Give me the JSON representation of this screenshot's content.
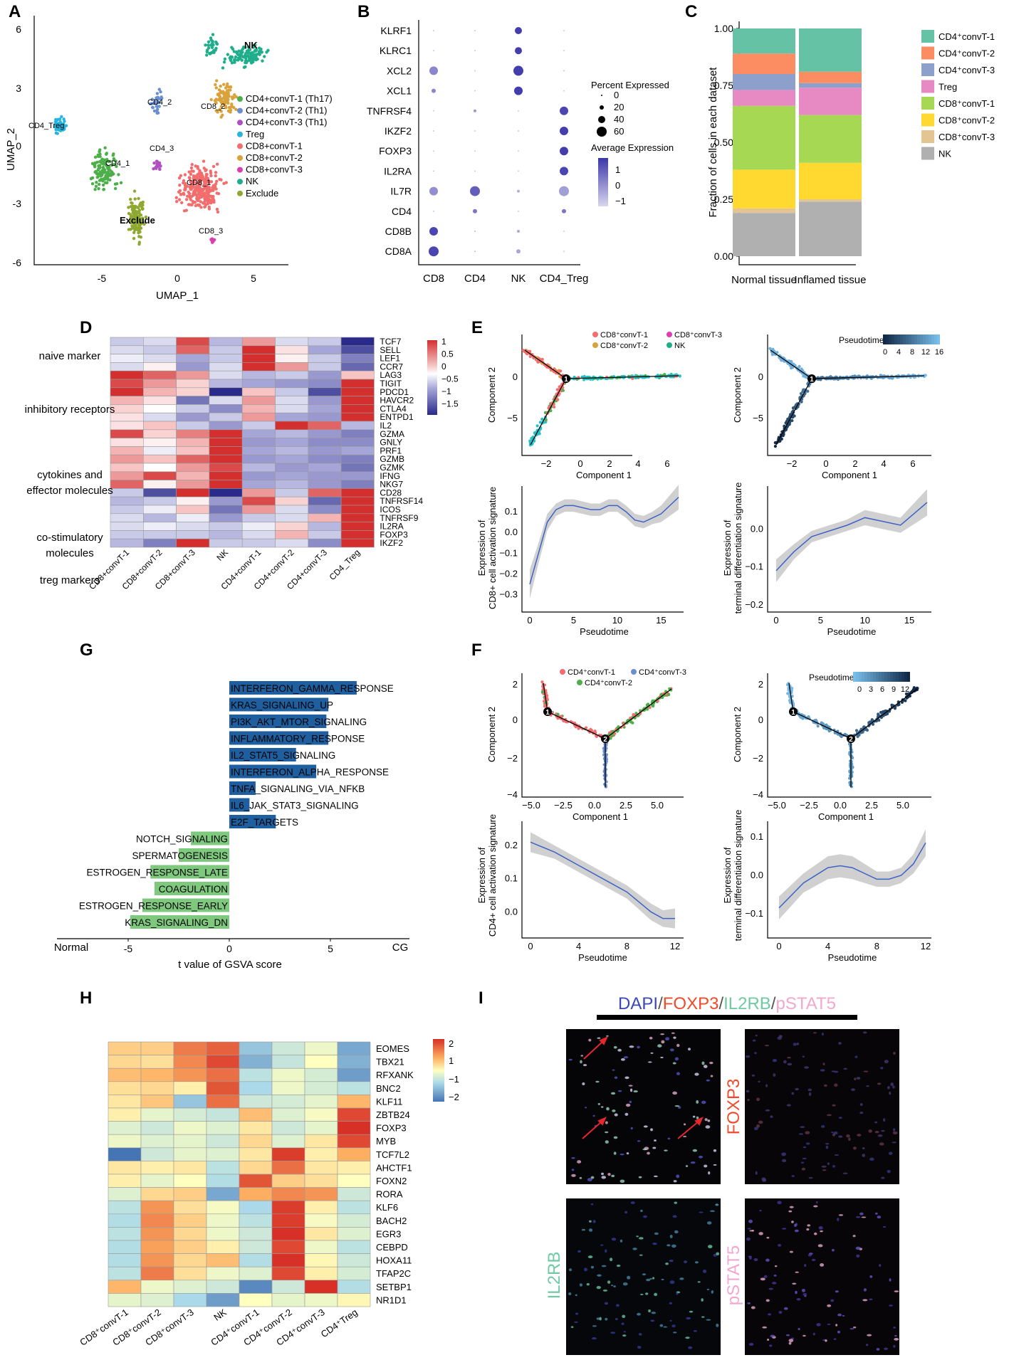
{
  "panels": [
    "A",
    "B",
    "C",
    "D",
    "E",
    "F",
    "G",
    "H",
    "I"
  ],
  "colors": {
    "cd4_1": "#4daf4a",
    "cd4_2": "#6a8fd0",
    "cd4_3": "#b04fc2",
    "treg": "#27b5e0",
    "cd8_1": "#f26d6d",
    "cd8_2": "#d9a23a",
    "cd8_3": "#d93fae",
    "nk": "#1fae8c",
    "exclude": "#8fa832",
    "bar_up": "#1f5f9f",
    "bar_down": "#7fc97f",
    "dot": "#3b4bb0"
  },
  "umap": {
    "xlabel": "UMAP_1",
    "ylabel": "UMAP_2",
    "xticks": [
      "-5",
      "0",
      "5"
    ],
    "yticks": [
      "6",
      "3",
      "0",
      "-3",
      "-6"
    ],
    "legend": [
      "CD4+convT-1 (Th17)",
      "CD4+convT-2 (Th1)",
      "CD4+convT-3 (Th1)",
      "Treg",
      "CD8+convT-1",
      "CD8+convT-2",
      "CD8+convT-3",
      "NK",
      "Exclude"
    ],
    "cluster_labels": [
      "NK",
      "CD4_2",
      "CD8_2",
      "CD4_Treg",
      "CD4_1",
      "CD4_3",
      "CD8_1",
      "Exclude",
      "CD8_3"
    ]
  },
  "dotplot": {
    "genes": [
      "KLRF1",
      "KLRC1",
      "XCL2",
      "XCL1",
      "TNFRSF4",
      "IKZF2",
      "FOXP3",
      "IL2RA",
      "IL7R",
      "CD4",
      "CD8B",
      "CD8A"
    ],
    "groups": [
      "CD8",
      "CD4",
      "NK",
      "CD4_Treg"
    ],
    "size_title": "Percent Expressed",
    "size_ticks": [
      "0",
      "20",
      "40",
      "60"
    ],
    "color_title": "Average Expression",
    "color_ticks": [
      "1",
      "0",
      "−1"
    ]
  },
  "chart_data": [
    {
      "type": "bar",
      "title": "C",
      "ylabel": "Fraction of cells in each dataset",
      "categories": [
        "Normal tissue",
        "Inflamed tissue"
      ],
      "yticks": [
        "1.00",
        "0.75",
        "0.50",
        "0.25",
        "0.00"
      ],
      "ylim": [
        0,
        1
      ],
      "series": [
        {
          "name": "NK",
          "values": [
            0.19,
            0.24
          ]
        },
        {
          "name": "CD8+convT-3",
          "values": [
            0.02,
            0.01
          ]
        },
        {
          "name": "CD8+convT-2",
          "values": [
            0.17,
            0.16
          ]
        },
        {
          "name": "CD8+convT-1",
          "values": [
            0.28,
            0.21
          ]
        },
        {
          "name": "Treg",
          "values": [
            0.07,
            0.12
          ]
        },
        {
          "name": "CD4+convT-3",
          "values": [
            0.07,
            0.02
          ]
        },
        {
          "name": "CD4+convT-2",
          "values": [
            0.09,
            0.05
          ]
        },
        {
          "name": "CD4+convT-1",
          "values": [
            0.11,
            0.19
          ]
        }
      ],
      "legend": [
        "CD4⁺convT-1",
        "CD4⁺convT-2",
        "CD4⁺convT-3",
        "Treg",
        "CD8⁺convT-1",
        "CD8⁺convT-2",
        "CD8⁺convT-3",
        "NK"
      ]
    },
    {
      "type": "heatmap",
      "title": "D",
      "rows": [
        "TCF7",
        "SELL",
        "LEF1",
        "CCR7",
        "LAG3",
        "TIGIT",
        "PDCD1",
        "HAVCR2",
        "CTLA4",
        "ENTPD1",
        "IL2",
        "GZMA",
        "GNLY",
        "PRF1",
        "GZMB",
        "GZMK",
        "IFNG",
        "NKG7",
        "CD28",
        "TNFRSF14",
        "ICOS",
        "TNFRSF9",
        "IL2RA",
        "FOXP3",
        "IKZF2"
      ],
      "columns": [
        "CD8+convT-1",
        "CD8+convT-2",
        "CD8+convT-3",
        "NK",
        "CD4+convT-1",
        "CD4+convT-2",
        "CD4+convT-3",
        "CD4_Treg"
      ],
      "groups": [
        "naive marker",
        "inhibitory receptors",
        "cytokines and\neffector molecules",
        "co-stimulatory\nmolecules",
        "treg markers"
      ],
      "legend_ticks": [
        "1",
        "0.5",
        "0",
        "−0.5",
        "−1",
        "−1.5"
      ],
      "values": [
        [
          -0.3,
          -0.2,
          0.9,
          -0.4,
          0.6,
          -0.2,
          -0.3,
          -1.5
        ],
        [
          -0.2,
          -0.3,
          0.8,
          -0.3,
          1.0,
          0.2,
          -0.5,
          -1.2
        ],
        [
          -0.1,
          -0.2,
          -0.5,
          -0.3,
          1.0,
          0.1,
          -0.3,
          -0.8
        ],
        [
          -0.2,
          0.1,
          -0.6,
          -0.2,
          1.0,
          0.6,
          -0.3,
          -1.0
        ],
        [
          1.0,
          0.8,
          0.6,
          -0.2,
          -0.4,
          -0.3,
          -0.6,
          0.4
        ],
        [
          0.9,
          0.6,
          0.3,
          -0.4,
          -0.5,
          -0.6,
          -0.7,
          1.0
        ],
        [
          1.0,
          0.5,
          0.3,
          -1.5,
          0.4,
          -0.3,
          -1.2,
          1.0
        ],
        [
          0.5,
          0.2,
          -0.9,
          -0.2,
          0.6,
          -0.2,
          -0.6,
          1.0
        ],
        [
          0.3,
          0.0,
          -0.3,
          -0.7,
          0.5,
          -0.2,
          -0.5,
          1.0
        ],
        [
          0.2,
          -0.2,
          -0.6,
          -0.3,
          0.6,
          -0.5,
          -0.6,
          1.0
        ],
        [
          0.2,
          0.4,
          -0.3,
          -0.6,
          -0.3,
          1.0,
          0.8,
          -0.4
        ],
        [
          0.9,
          0.3,
          0.7,
          1.0,
          -0.5,
          -0.4,
          -0.6,
          -0.8
        ],
        [
          0.2,
          0.1,
          0.5,
          1.0,
          -0.6,
          -0.5,
          -0.7,
          -0.7
        ],
        [
          0.5,
          -0.1,
          0.4,
          1.0,
          -0.5,
          -0.4,
          -0.6,
          -0.5
        ],
        [
          0.6,
          0.4,
          0.8,
          1.0,
          -0.6,
          -0.5,
          -0.7,
          -0.8
        ],
        [
          0.4,
          0.0,
          0.6,
          0.9,
          -0.4,
          -0.6,
          -0.5,
          -0.9
        ],
        [
          0.6,
          0.9,
          0.5,
          1.0,
          -0.6,
          -0.5,
          -0.6,
          -0.6
        ],
        [
          0.8,
          0.1,
          0.6,
          1.0,
          -0.5,
          -0.4,
          -0.6,
          -0.8
        ],
        [
          -0.3,
          -1.2,
          1.0,
          -1.5,
          0.6,
          -0.3,
          0.8,
          1.0
        ],
        [
          -0.4,
          -0.3,
          0.1,
          -0.6,
          0.9,
          0.3,
          -1.0,
          1.0
        ],
        [
          -0.3,
          -0.1,
          0.4,
          -0.9,
          0.6,
          -0.2,
          -0.7,
          1.0
        ],
        [
          -0.2,
          -0.4,
          -0.1,
          -0.6,
          -0.3,
          -0.2,
          0.5,
          1.0
        ],
        [
          -0.2,
          -0.1,
          -0.2,
          -0.3,
          -0.1,
          0.3,
          -0.4,
          1.0
        ],
        [
          -0.3,
          -0.3,
          -0.3,
          -0.4,
          -0.2,
          0.5,
          -0.3,
          1.0
        ],
        [
          -0.4,
          -0.8,
          1.0,
          -0.3,
          -0.3,
          -0.2,
          -0.7,
          1.0
        ]
      ]
    },
    {
      "type": "bar",
      "title": "G",
      "orientation": "horizontal",
      "xlabel": "t value of GSVA score",
      "xticks": [
        "-5",
        "0",
        "5"
      ],
      "left_label": "Normal",
      "right_label": "CG",
      "categories": [
        "INTERFERON_GAMMA_RESPONSE",
        "KRAS_SIGNALING_UP",
        "PI3K_AKT_MTOR_SIGNALING",
        "INFLAMMATORY_RESPONSE",
        "IL2_STAT5_SIGNALING",
        "INTERFERON_ALPHA_RESPONSE",
        "TNFA_SIGNALING_VIA_NFKB",
        "IL6_JAK_STAT3_SIGNALING",
        "E2F_TARGETS",
        "NOTCH_SIGNALING",
        "SPERMATOGENESIS",
        "ESTROGEN_RESPONSE_LATE",
        "COAGULATION",
        "ESTROGEN_RESPONSE_EARLY",
        "KRAS_SIGNALING_DN"
      ],
      "values": [
        6.3,
        4.9,
        4.8,
        4.9,
        3.3,
        4.3,
        1.3,
        1.0,
        2.3,
        -1.9,
        -2.5,
        -3.9,
        -3.7,
        -4.3,
        -4.9
      ]
    },
    {
      "type": "heatmap",
      "title": "H",
      "rows": [
        "EOMES",
        "TBX21",
        "RFXANK",
        "BNC2",
        "KLF11",
        "ZBTB24",
        "FOXP3",
        "MYB",
        "TCF7L2",
        "AHCTF1",
        "FOXN2",
        "RORA",
        "KLF6",
        "BACH2",
        "EGR3",
        "CEBPD",
        "HOXA11",
        "TFAP2C",
        "SETBP1",
        "NR1D1"
      ],
      "columns": [
        "CD8⁺convT-1",
        "CD8⁺convT-2",
        "CD8⁺convT-3",
        "NK",
        "CD4⁺convT-1",
        "CD4⁺convT-2",
        "CD4⁺convT-3",
        "CD4⁺Treg"
      ],
      "legend_ticks": [
        "2",
        "1",
        "−1",
        "−2"
      ],
      "values": [
        [
          0.6,
          0.6,
          1.4,
          1.6,
          -1.2,
          -0.6,
          -0.2,
          -1.5
        ],
        [
          0.5,
          0.4,
          1.3,
          1.8,
          -1.4,
          -0.7,
          0.0,
          -1.4
        ],
        [
          0.8,
          0.9,
          1.2,
          1.5,
          -0.8,
          -0.2,
          -0.5,
          -1.6
        ],
        [
          0.4,
          0.5,
          0.2,
          1.7,
          -1.0,
          -0.2,
          -0.5,
          -0.8
        ],
        [
          0.3,
          0.7,
          -1.2,
          1.5,
          -0.6,
          -0.5,
          -0.3,
          0.9
        ],
        [
          0.2,
          -0.3,
          -0.5,
          -0.7,
          0.8,
          -0.4,
          -0.1,
          1.8
        ],
        [
          -0.4,
          -0.6,
          -0.2,
          -0.4,
          0.3,
          -0.6,
          -0.3,
          2.0
        ],
        [
          -0.2,
          -0.4,
          -0.3,
          -0.6,
          0.5,
          -0.4,
          0.3,
          1.8
        ],
        [
          -2.0,
          -0.6,
          -0.3,
          -0.4,
          0.3,
          1.9,
          0.2,
          1.0
        ],
        [
          0.3,
          0.2,
          0.3,
          -0.8,
          0.5,
          1.5,
          0.3,
          0.2
        ],
        [
          0.2,
          -0.3,
          0.0,
          -0.9,
          1.7,
          0.6,
          0.4,
          0.0
        ],
        [
          -0.4,
          0.5,
          0.6,
          -1.5,
          1.0,
          1.3,
          1.2,
          -0.6
        ],
        [
          -0.8,
          1.2,
          0.4,
          -0.1,
          -1.0,
          1.9,
          0.2,
          -0.8
        ],
        [
          -0.9,
          1.3,
          0.6,
          -0.2,
          -0.8,
          1.9,
          -0.1,
          -0.5
        ],
        [
          -0.8,
          1.2,
          0.5,
          -0.2,
          -0.6,
          2.0,
          0.3,
          -0.4
        ],
        [
          -0.9,
          1.1,
          0.6,
          0.2,
          -0.6,
          1.8,
          -0.2,
          -0.8
        ],
        [
          -0.9,
          1.2,
          0.5,
          0.8,
          -0.9,
          2.0,
          0.1,
          -0.6
        ],
        [
          -0.8,
          1.4,
          0.4,
          -0.2,
          -0.4,
          1.8,
          0.2,
          -0.5
        ],
        [
          0.9,
          -0.2,
          -0.4,
          -0.6,
          -1.8,
          -0.6,
          2.0,
          -0.9
        ],
        [
          -0.3,
          -0.4,
          -1.0,
          -1.6,
          0.0,
          -0.3,
          -0.2,
          0.1
        ]
      ]
    }
  ],
  "trajectory": {
    "e_legend": [
      "CD8⁺convT-1",
      "CD8⁺convT-3",
      "CD8⁺convT-2",
      "NK"
    ],
    "f_legend": [
      "CD4⁺convT-1",
      "CD4⁺convT-3",
      "CD4⁺convT-2"
    ],
    "pseudotime_label": "Pseudotime",
    "e_pt_ticks": [
      "0",
      "4",
      "8",
      "12",
      "16"
    ],
    "f_pt_ticks": [
      "0",
      "3",
      "6",
      "9",
      "12"
    ],
    "component1": "Component 1",
    "component2": "Component 2",
    "e_xticks": [
      "−2",
      "0",
      "2",
      "4",
      "6"
    ],
    "e_yticks": [
      "0",
      "−5"
    ],
    "f_xticks": [
      "−5.0",
      "−2.5",
      "0.0",
      "2.5",
      "5.0"
    ],
    "f_yticks": [
      "2",
      "0",
      "−2",
      "−4"
    ],
    "e_smooth_x": [
      "0",
      "5",
      "10",
      "15"
    ],
    "f_smooth_x": [
      "0",
      "4",
      "8",
      "12"
    ],
    "e_left_ylabel": [
      "Expression of",
      "CD8+ cell activation signature"
    ],
    "e_right_ylabel": [
      "Expression of",
      "terminal differentiation signature"
    ],
    "f_left_ylabel": [
      "Expression of",
      "CD4+ cell activation signature"
    ],
    "f_right_ylabel": [
      "Expression of",
      "terminal differentiation signature"
    ],
    "e_left_yticks": [
      "0.1",
      "0.0",
      "−0.1",
      "−0.2",
      "−0.3"
    ],
    "e_right_yticks": [
      "0.0",
      "−0.1",
      "−0.2"
    ],
    "f_left_yticks": [
      "0.2",
      "0.1",
      "0.0"
    ],
    "f_right_yticks": [
      "0.1",
      "0.0",
      "−0.1"
    ],
    "node_labels": [
      "1",
      "2"
    ]
  },
  "imaging": {
    "title_parts": [
      "DAPI",
      "/",
      "FOXP3",
      "/",
      "IL2RB",
      "/",
      "pSTAT5"
    ],
    "labels": [
      "FOXP3",
      "IL2RB",
      "pSTAT5"
    ]
  }
}
